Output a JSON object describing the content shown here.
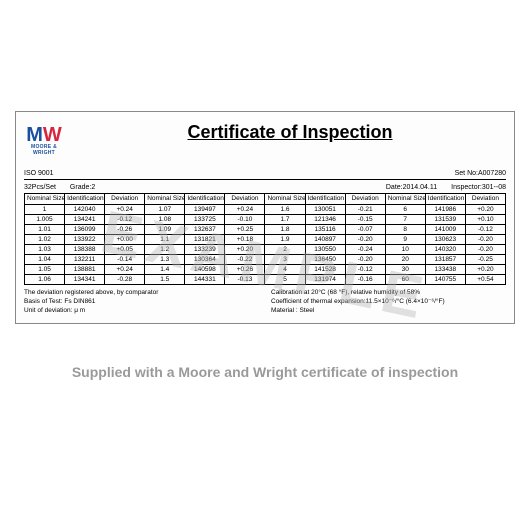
{
  "logo": {
    "brand_top": "M",
    "brand_bottom": "W",
    "brand_sub": "MOORE\n& WRIGHT"
  },
  "title": "Certificate of Inspection",
  "meta": {
    "iso": "ISO 9001",
    "pcs": "32Pcs/Set",
    "grade": "Grade:2",
    "setno": "Set No:A007280",
    "date": "Date:2014.04.11",
    "inspector": "Inspector:301--08"
  },
  "headers": {
    "nominal": "Nominal Size",
    "ident": "Identification Number",
    "dev": "Deviation"
  },
  "rows": [
    [
      "1",
      "142040",
      "+0.24",
      "1.07",
      "139497",
      "+0.24",
      "1.6",
      "130051",
      "-0.21",
      "6",
      "141986",
      "+0.20"
    ],
    [
      "1.005",
      "134241",
      "-0.12",
      "1.08",
      "133725",
      "-0.10",
      "1.7",
      "121346",
      "-0.15",
      "7",
      "131539",
      "+0.10"
    ],
    [
      "1.01",
      "136099",
      "-0.26",
      "1.09",
      "132637",
      "+0.25",
      "1.8",
      "135116",
      "-0.07",
      "8",
      "141009",
      "-0.12"
    ],
    [
      "1.02",
      "133922",
      "+0.00",
      "1.1",
      "131821",
      "+0.18",
      "1.9",
      "140897",
      "-0.20",
      "9",
      "130623",
      "-0.20"
    ],
    [
      "1.03",
      "138388",
      "+0.05",
      "1.2",
      "133239",
      "+0.20",
      "2",
      "130550",
      "-0.24",
      "10",
      "140320",
      "-0.20"
    ],
    [
      "1.04",
      "132211",
      "-0.14",
      "1.3",
      "130364",
      "-0.22",
      "3",
      "136450",
      "-0.20",
      "20",
      "131857",
      "-0.25"
    ],
    [
      "1.05",
      "138881",
      "+0.24",
      "1.4",
      "140598",
      "+0.26",
      "4",
      "141528",
      "-0.12",
      "30",
      "133438",
      "+0.20"
    ],
    [
      "1.06",
      "134341",
      "-0.28",
      "1.5",
      "144331",
      "-0.13",
      "5",
      "131974",
      "-0.16",
      "60",
      "140755",
      "+0.54"
    ]
  ],
  "footer": {
    "l1": "The deviation registered above, by comparator",
    "l2": "Basis of Test: Fs DIN861",
    "l3": "Unit of deviation: μ m",
    "r1": "Calibration at 20°C (68 °F), relative humidity of 58%",
    "r2": "Coefficient of thermal expansion:11.5×10⁻⁶/°C (6.4×10⁻⁶/°F)",
    "r3": "Material : Steel"
  },
  "watermark": "EXAMPLE",
  "caption": "Supplied with a Moore and Wright certificate of inspection",
  "colors": {
    "border": "#000000",
    "watermark": "rgba(180,180,180,0.4)",
    "logo_blue": "#1a4fa0",
    "logo_red": "#d7263d",
    "caption": "#9a9a9a"
  }
}
